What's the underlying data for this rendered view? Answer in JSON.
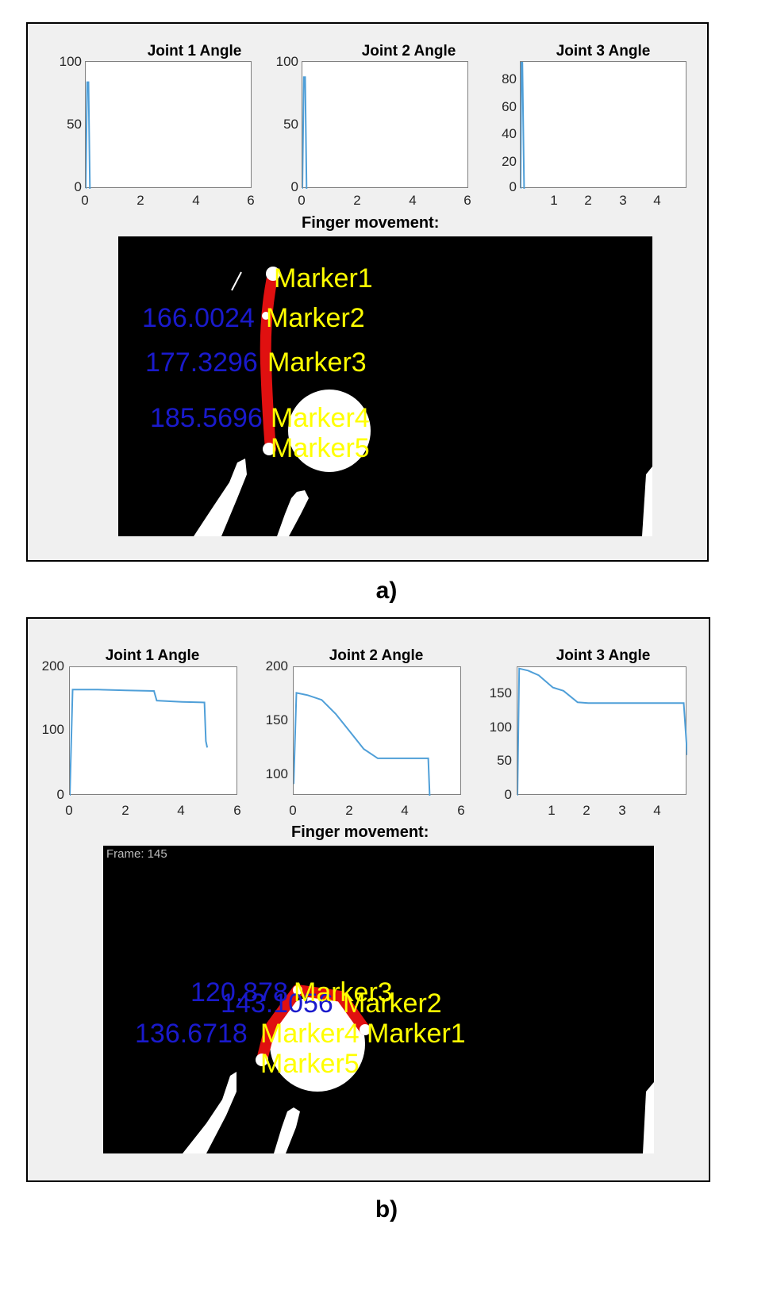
{
  "figure_a": {
    "caption": "a)",
    "section_title": "Finger movement:",
    "plots": [
      {
        "title": "Joint 1 Angle",
        "yticks": [
          "100",
          "50",
          "0"
        ],
        "xticks": [
          "0",
          "2",
          "4",
          "6"
        ]
      },
      {
        "title": "Joint 2 Angle",
        "yticks": [
          "100",
          "50",
          "0"
        ],
        "xticks": [
          "0",
          "2",
          "4",
          "6"
        ]
      },
      {
        "title": "Joint 3 Angle",
        "yticks": [
          "80",
          "60",
          "40",
          "20",
          "0"
        ],
        "xticks": [
          "1",
          "2",
          "3",
          "4"
        ]
      }
    ],
    "markers": [
      "Marker1",
      "Marker2",
      "Marker3",
      "Marker4",
      "Marker5"
    ],
    "angles": [
      "166.0024",
      "177.3296",
      "185.5696"
    ]
  },
  "figure_b": {
    "caption": "b)",
    "section_title": "Finger movement:",
    "frame_label": "Frame: 145",
    "plots": [
      {
        "title": "Joint 1 Angle",
        "yticks": [
          "200",
          "100",
          "0"
        ],
        "xticks": [
          "0",
          "2",
          "4",
          "6"
        ]
      },
      {
        "title": "Joint 2 Angle",
        "yticks": [
          "200",
          "150",
          "100"
        ],
        "xticks": [
          "0",
          "2",
          "4",
          "6"
        ]
      },
      {
        "title": "Joint 3 Angle",
        "yticks": [
          "150",
          "100",
          "50",
          "0"
        ],
        "xticks": [
          "1",
          "2",
          "3",
          "4"
        ]
      }
    ],
    "markers": [
      "Marker3",
      "Marker2",
      "Marker1",
      "Marker4",
      "Marker5"
    ],
    "angles": [
      "120.878",
      "143.1056",
      "136.6718"
    ]
  },
  "chart_data": [
    {
      "type": "line",
      "title": "Joint 1 Angle",
      "xlim": [
        0,
        6
      ],
      "ylim": [
        0,
        100
      ],
      "x": [
        0,
        0.05,
        0.1,
        0.15
      ],
      "y": [
        0,
        84,
        84,
        0
      ]
    },
    {
      "type": "line",
      "title": "Joint 2 Angle",
      "xlim": [
        0,
        6
      ],
      "ylim": [
        0,
        100
      ],
      "x": [
        0,
        0.05,
        0.1,
        0.15
      ],
      "y": [
        0,
        88,
        88,
        0
      ]
    },
    {
      "type": "line",
      "title": "Joint 3 Angle",
      "xlim": [
        0,
        4.8
      ],
      "ylim": [
        0,
        92
      ],
      "x": [
        0,
        0.02,
        0.05,
        0.1
      ],
      "y": [
        0,
        92,
        92,
        0
      ]
    },
    {
      "type": "line",
      "title": "Joint 1 Angle",
      "xlim": [
        0,
        6
      ],
      "ylim": [
        0,
        200
      ],
      "x": [
        0,
        0.1,
        1,
        2,
        3,
        3.1,
        4,
        4.8,
        4.85,
        4.9
      ],
      "y": [
        0,
        165,
        165,
        164,
        163,
        148,
        146,
        145,
        85,
        75
      ]
    },
    {
      "type": "line",
      "title": "Joint 2 Angle",
      "xlim": [
        0,
        6
      ],
      "ylim": [
        90,
        200
      ],
      "x": [
        0,
        0.1,
        0.5,
        1,
        1.5,
        2,
        2.5,
        3,
        4,
        4.8,
        4.85
      ],
      "y": [
        100,
        178,
        176,
        172,
        160,
        145,
        130,
        122,
        122,
        122,
        90
      ]
    },
    {
      "type": "line",
      "title": "Joint 3 Angle",
      "xlim": [
        0,
        4.8
      ],
      "ylim": [
        0,
        190
      ],
      "x": [
        0,
        0.05,
        0.3,
        0.6,
        1,
        1.3,
        1.7,
        2,
        3,
        4,
        4.7,
        4.8
      ],
      "y": [
        0,
        188,
        185,
        178,
        160,
        155,
        138,
        137,
        137,
        137,
        137,
        60
      ]
    }
  ]
}
